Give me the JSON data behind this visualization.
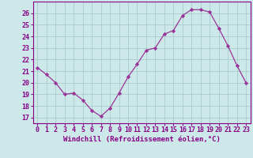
{
  "x": [
    0,
    1,
    2,
    3,
    4,
    5,
    6,
    7,
    8,
    9,
    10,
    11,
    12,
    13,
    14,
    15,
    16,
    17,
    18,
    19,
    20,
    21,
    22,
    23
  ],
  "y": [
    21.3,
    20.7,
    20.0,
    19.0,
    19.1,
    18.5,
    17.6,
    17.1,
    17.8,
    19.1,
    20.5,
    21.6,
    22.8,
    23.0,
    24.2,
    24.5,
    25.8,
    26.3,
    26.3,
    26.1,
    24.7,
    23.2,
    21.5,
    20.0
  ],
  "line_color": "#993399",
  "marker": "D",
  "marker_size": 2.2,
  "bg_color": "#cce8e8",
  "grid_color": "#aacccc",
  "xlabel": "Windchill (Refroidissement éolien,°C)",
  "ylabel_ticks": [
    17,
    18,
    19,
    20,
    21,
    22,
    23,
    24,
    25,
    26
  ],
  "xlim": [
    -0.5,
    23.5
  ],
  "ylim": [
    16.5,
    27.0
  ],
  "xlabel_fontsize": 6.5,
  "tick_fontsize": 6.0,
  "label_color": "#880088"
}
